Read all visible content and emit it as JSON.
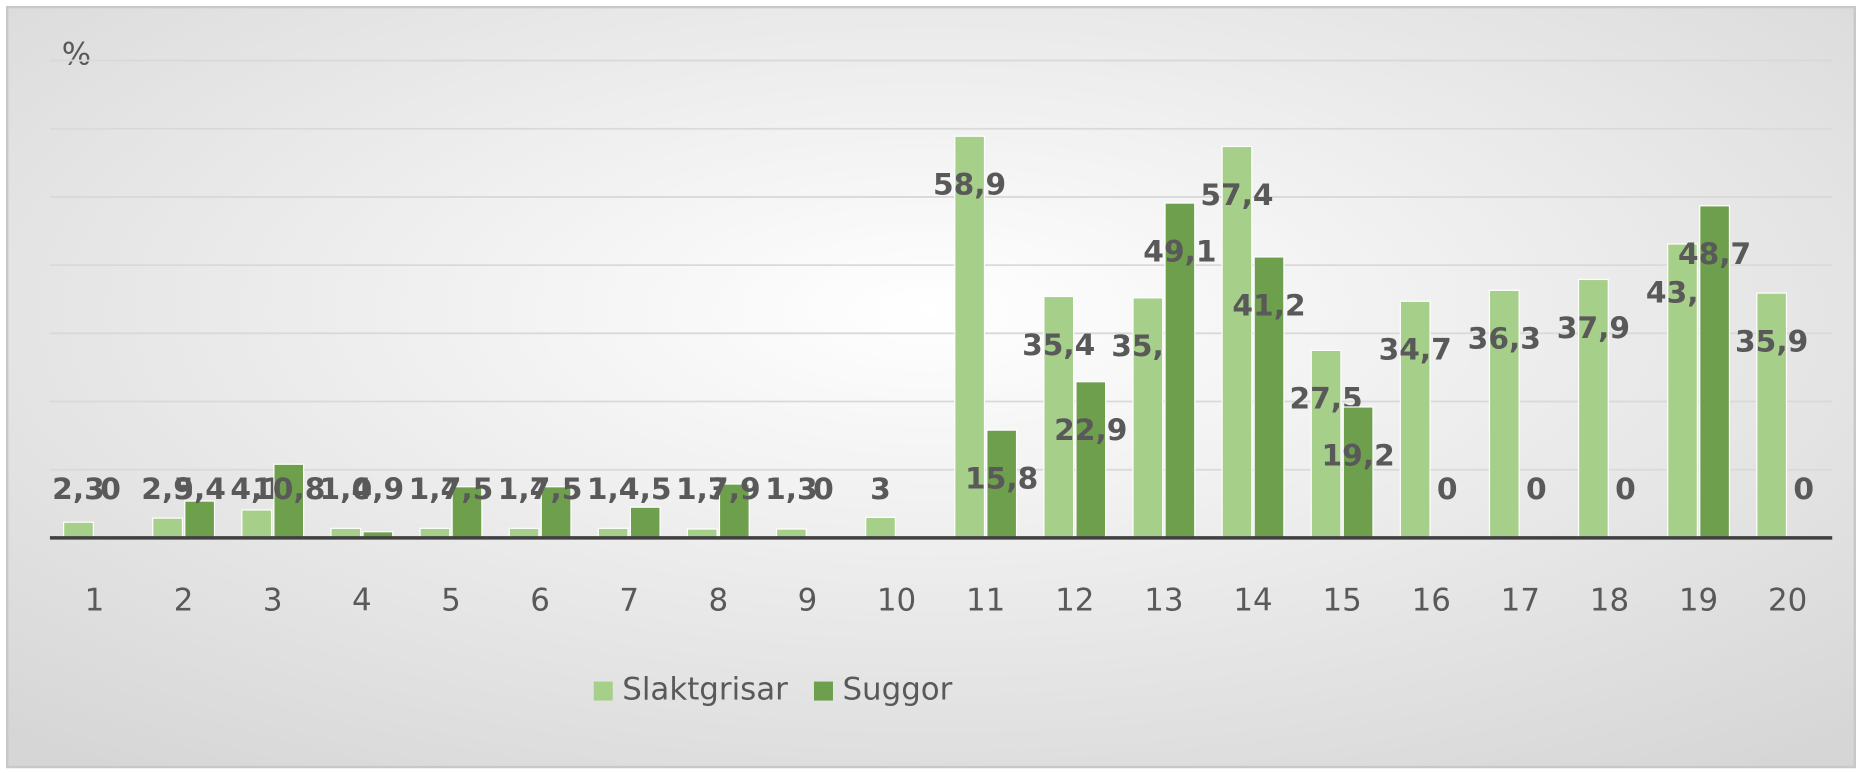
{
  "chart_data": {
    "type": "bar",
    "y_label": "%",
    "categories": [
      "1",
      "2",
      "3",
      "4",
      "5",
      "6",
      "7",
      "8",
      "9",
      "10",
      "11",
      "12",
      "13",
      "14",
      "15",
      "16",
      "17",
      "18",
      "19",
      "20"
    ],
    "series": [
      {
        "name": "Slaktgrisar",
        "color": "#a6cf8a",
        "values": [
          2.3,
          2.9,
          4.1,
          1.4,
          1.4,
          1.4,
          1.4,
          1.3,
          1.3,
          3,
          58.9,
          35.4,
          35.2,
          57.4,
          27.5,
          34.7,
          36.3,
          37.9,
          43.1,
          35.9
        ],
        "value_labels": [
          "2,3",
          "2,9",
          "4,1",
          "1,4",
          "1,4",
          "1,4",
          "1,4",
          "1,3",
          "1,3",
          "3",
          "58,9",
          "35,4",
          "35,2",
          "57,4",
          "27,5",
          "34,7",
          "36,3",
          "37,9",
          "43,1",
          "35,9"
        ]
      },
      {
        "name": "Suggor",
        "color": "#6e9f4c",
        "values": [
          0,
          5.4,
          10.8,
          0.9,
          7.5,
          7.5,
          4.5,
          7.9,
          0,
          null,
          15.8,
          22.9,
          49.1,
          41.2,
          19.2,
          0,
          0,
          0,
          48.7,
          0
        ],
        "value_labels": [
          "0",
          "5,4",
          "10,8",
          "0,9",
          "7,5",
          "7,5",
          "4,5",
          "7,9",
          "0",
          null,
          "15,8",
          "22,9",
          "49,1",
          "41,2",
          "19,2",
          "0",
          "0",
          "0",
          "48,7",
          "0"
        ]
      }
    ],
    "ylim": [
      0,
      70
    ],
    "yticks": [
      0,
      10,
      20,
      30,
      40,
      50,
      60,
      70
    ],
    "grid": true,
    "legend": "bottom"
  }
}
